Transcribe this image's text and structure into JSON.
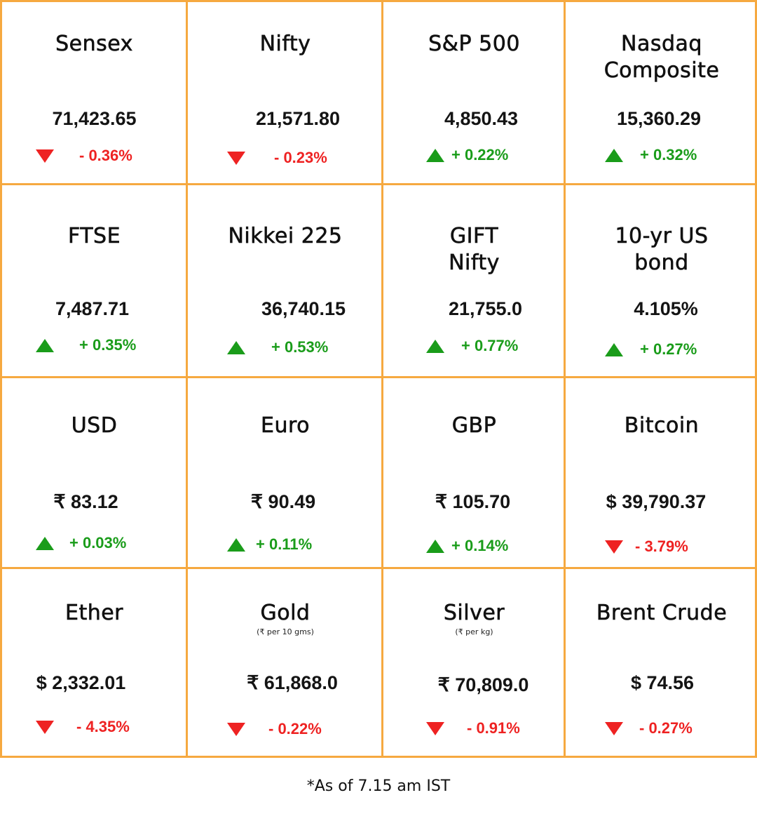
{
  "colors": {
    "border": "#f6a940",
    "up": "#1a9c1a",
    "down": "#ee2222",
    "text": "#111111"
  },
  "cells": [
    {
      "name": "Sensex",
      "value": "71,423.65",
      "change": "- 0.36%",
      "direction": "down"
    },
    {
      "name": "Nifty",
      "value": "21,571.80",
      "change": "- 0.23%",
      "direction": "down"
    },
    {
      "name": "S&P 500",
      "value": "4,850.43",
      "change": "+ 0.22%",
      "direction": "up"
    },
    {
      "name": "Nasdaq Composite",
      "value": "15,360.29",
      "change": "+ 0.32%",
      "direction": "up"
    },
    {
      "name": "FTSE",
      "value": "7,487.71",
      "change": "+ 0.35%",
      "direction": "up"
    },
    {
      "name": "Nikkei 225",
      "value": "36,740.15",
      "change": "+ 0.53%",
      "direction": "up"
    },
    {
      "name": "GIFT Nifty",
      "value": "21,755.0",
      "change": "+ 0.77%",
      "direction": "up"
    },
    {
      "name": "10-yr US bond",
      "value": "4.105%",
      "change": "+ 0.27%",
      "direction": "up"
    },
    {
      "name": "USD",
      "value": "₹ 83.12",
      "change": "+ 0.03%",
      "direction": "up"
    },
    {
      "name": "Euro",
      "value": "₹ 90.49",
      "change": "+ 0.11%",
      "direction": "up"
    },
    {
      "name": "GBP",
      "value": "₹ 105.70",
      "change": "+ 0.14%",
      "direction": "up"
    },
    {
      "name": "Bitcoin",
      "value": "$ 39,790.37",
      "change": "- 3.79%",
      "direction": "down"
    },
    {
      "name": "Ether",
      "value": "$ 2,332.01",
      "change": "- 4.35%",
      "direction": "down"
    },
    {
      "name": "Gold",
      "subtitle": "(₹ per 10 gms)",
      "value": "₹ 61,868.0",
      "change": "- 0.22%",
      "direction": "down"
    },
    {
      "name": "Silver",
      "subtitle": "(₹ per kg)",
      "value": "₹ 70,809.0",
      "change": "- 0.91%",
      "direction": "down"
    },
    {
      "name": "Brent Crude",
      "value": "$ 74.56",
      "change": "- 0.27%",
      "direction": "down"
    }
  ],
  "footnote": "*As of 7.15 am IST"
}
